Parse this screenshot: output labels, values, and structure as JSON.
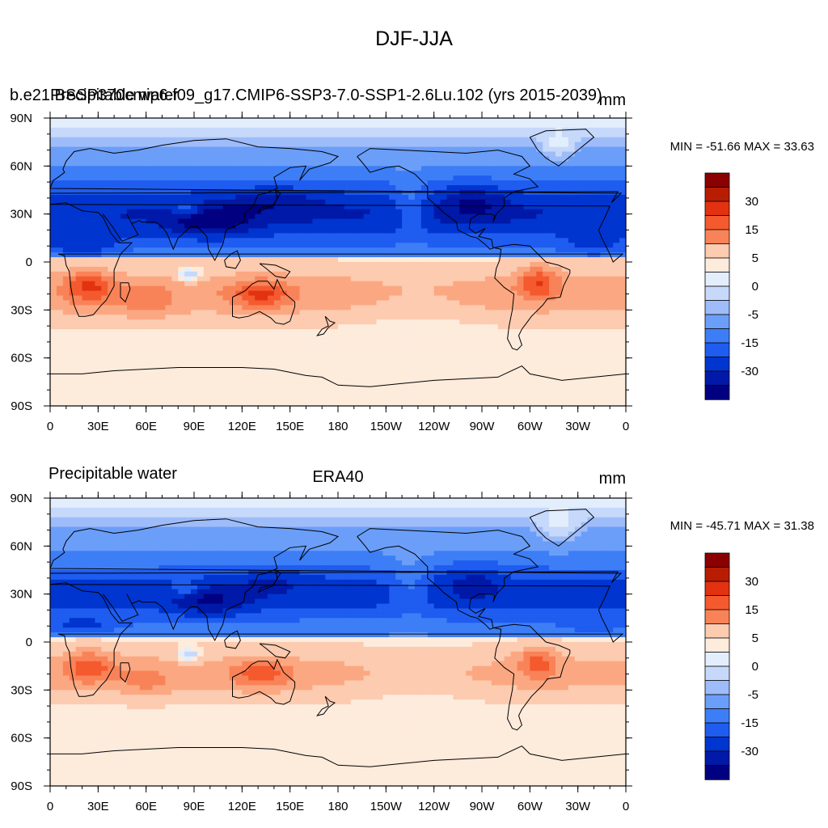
{
  "figure": {
    "title": "DJF-JJA"
  },
  "colors": {
    "levels": [
      "-35",
      "-30",
      "-25",
      "-20",
      "-15",
      "-10",
      "-5",
      "-2",
      "0",
      "2",
      "5",
      "10",
      "15",
      "20",
      "25",
      "30",
      "35"
    ],
    "level_labels": [
      "30",
      "15",
      "5",
      "0",
      "-5",
      "-15",
      "-30"
    ],
    "fills": [
      "#000080",
      "#0019a8",
      "#0035d0",
      "#1f5cf0",
      "#3d7ef7",
      "#6b9ef8",
      "#9ebcf9",
      "#c6d9fb",
      "#e3eefd",
      "#fdebdc",
      "#fccbb0",
      "#fba882",
      "#f98358",
      "#f55a2f",
      "#e23210",
      "#b81d02",
      "#8b0000"
    ],
    "coastline": "#000000",
    "frame": "#000000"
  },
  "chart_data": [
    {
      "type": "contour-map",
      "left_title_overlapping": [
        "b.e21.BSSP370cmip6.f09_g17.CMIP6-SSP3-7.0-SSP1-2.6Lu.102 (yrs 2015-2039)",
        "Precipitable water"
      ],
      "center_title": "",
      "right_title": "mm",
      "stats": "MIN = -51.66 MAX =  33.63",
      "min": -51.66,
      "max": 33.63,
      "xticks": [
        "0",
        "30E",
        "60E",
        "90E",
        "120E",
        "150E",
        "180",
        "150W",
        "120W",
        "90W",
        "60W",
        "30W",
        "0"
      ],
      "yticks": [
        "90N",
        "60N",
        "30N",
        "0",
        "30S",
        "60S",
        "90S"
      ],
      "xlim": [
        0,
        360
      ],
      "ylim": [
        -90,
        90
      ],
      "colorbar_labels": [
        "30",
        "15",
        "5",
        "0",
        "-5",
        "-15",
        "-30"
      ]
    },
    {
      "type": "contour-map",
      "left_title": "Precipitable water",
      "center_title": "ERA40",
      "right_title": "mm",
      "stats": "MIN = -45.71 MAX =  31.38",
      "min": -45.71,
      "max": 31.38,
      "xticks": [
        "0",
        "30E",
        "60E",
        "90E",
        "120E",
        "150E",
        "180",
        "150W",
        "120W",
        "90W",
        "60W",
        "30W",
        "0"
      ],
      "yticks": [
        "90N",
        "60N",
        "30N",
        "0",
        "30S",
        "60S",
        "90S"
      ],
      "xlim": [
        0,
        360
      ],
      "ylim": [
        -90,
        90
      ],
      "colorbar_labels": [
        "30",
        "15",
        "5",
        "0",
        "-5",
        "-15",
        "-30"
      ]
    }
  ]
}
